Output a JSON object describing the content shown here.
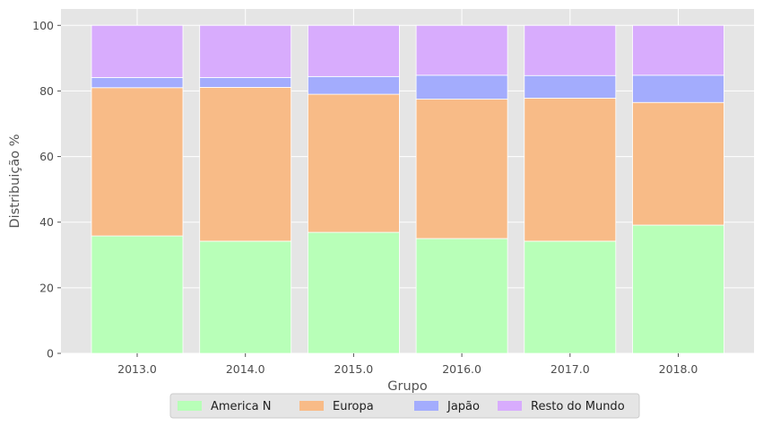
{
  "chart_data": {
    "type": "bar",
    "stacked": true,
    "categories": [
      "2013.0",
      "2014.0",
      "2015.0",
      "2016.0",
      "2017.0",
      "2018.0"
    ],
    "series": [
      {
        "name": "America N",
        "color": "#b8ffb8",
        "values": [
          35.8,
          34.2,
          36.9,
          35.0,
          34.2,
          39.1
        ]
      },
      {
        "name": "Europa",
        "color": "#f8bb87",
        "values": [
          45.2,
          46.9,
          42.1,
          42.5,
          43.6,
          37.4
        ]
      },
      {
        "name": "Japão",
        "color": "#a3acfd",
        "values": [
          3.1,
          3.0,
          5.4,
          7.3,
          6.9,
          8.3
        ]
      },
      {
        "name": "Resto do Mundo",
        "color": "#d8acfd",
        "values": [
          15.9,
          15.9,
          15.6,
          15.2,
          15.3,
          15.2
        ]
      }
    ],
    "xlabel": "Grupo",
    "ylabel": "Distribuição %",
    "ylim": [
      0,
      105
    ],
    "yticks": [
      "0",
      "20",
      "40",
      "60",
      "80",
      "100"
    ],
    "grid": true,
    "legend_position": "bottom-center"
  }
}
